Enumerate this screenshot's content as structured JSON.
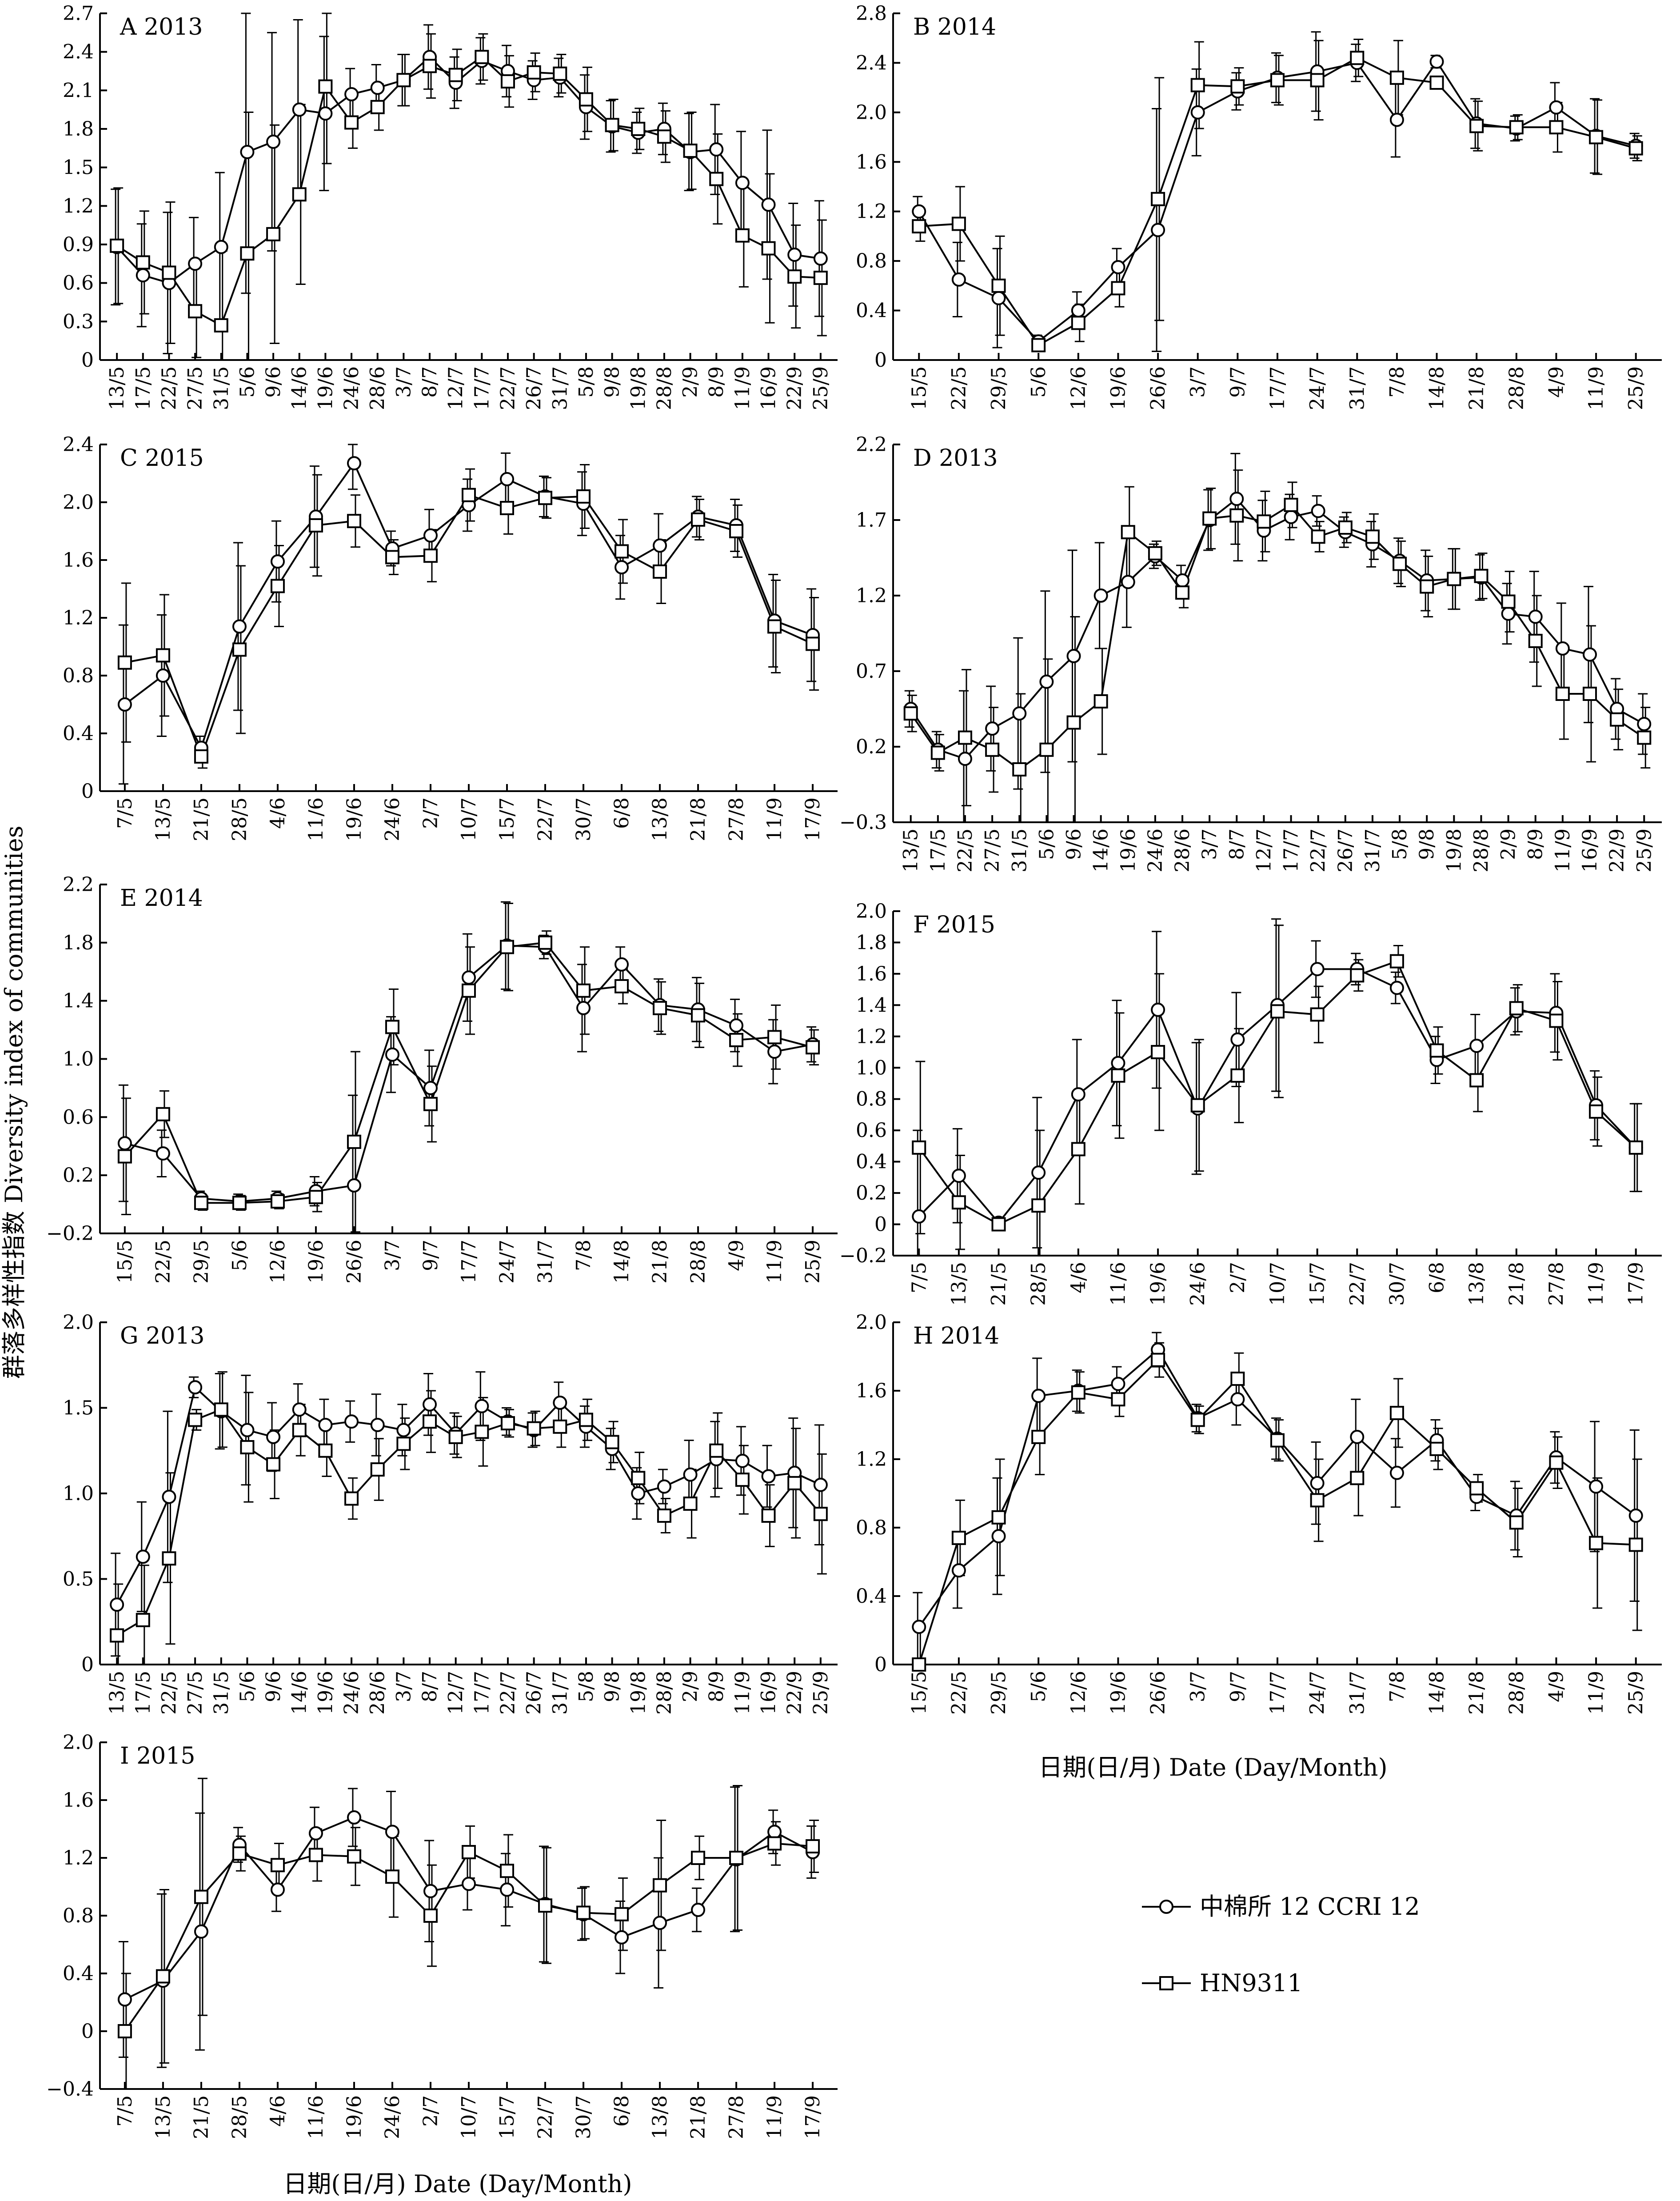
{
  "figure": {
    "ylabel": "群落多样性指数 Diversity index of communities",
    "xlabel_right": "日期(日/月) Date (Day/Month)",
    "xlabel_bottom": "日期(日/月) Date (Day/Month)",
    "legend": {
      "series1": "中棉所 12  CCRI 12",
      "series2": "HN9311"
    }
  },
  "chart_data": [
    {
      "type": "line",
      "title": "A 2013",
      "categories": [
        "13/5",
        "17/5",
        "22/5",
        "27/5",
        "31/5",
        "5/6",
        "9/6",
        "14/6",
        "19/6",
        "24/6",
        "28/6",
        "3/7",
        "8/7",
        "12/7",
        "17/7",
        "22/7",
        "26/7",
        "31/7",
        "5/8",
        "9/8",
        "19/8",
        "28/8",
        "2/9",
        "8/9",
        "11/9",
        "16/9",
        "22/9",
        "25/9"
      ],
      "ylim": [
        0,
        2.7
      ],
      "yticks": [
        "0",
        "0.3",
        "0.6",
        "0.9",
        "1.2",
        "1.5",
        "1.8",
        "2.1",
        "2.4",
        "2.7"
      ],
      "series": [
        {
          "name": "CCRI 12",
          "marker": "circle",
          "values": [
            0.88,
            0.66,
            0.6,
            0.75,
            0.88,
            1.62,
            1.7,
            1.95,
            1.92,
            2.07,
            2.12,
            2.18,
            2.36,
            2.16,
            2.33,
            2.25,
            2.18,
            2.2,
            1.97,
            1.82,
            1.77,
            1.8,
            1.62,
            1.64,
            1.38,
            1.21,
            0.82,
            0.79
          ]
        },
        {
          "name": "HN9311",
          "marker": "square",
          "values": [
            0.89,
            0.76,
            0.68,
            0.38,
            0.27,
            0.83,
            0.98,
            1.29,
            2.13,
            1.85,
            1.97,
            2.18,
            2.29,
            2.22,
            2.36,
            2.17,
            2.24,
            2.23,
            2.03,
            1.83,
            1.8,
            1.74,
            1.63,
            1.41,
            0.97,
            0.87,
            0.65,
            0.64
          ]
        }
      ],
      "errors": [
        0.45,
        0.4,
        0.55,
        0.36,
        0.58,
        1.1,
        0.85,
        0.7,
        0.6,
        0.2,
        0.18,
        0.2,
        0.25,
        0.2,
        0.18,
        0.2,
        0.15,
        0.15,
        0.25,
        0.2,
        0.16,
        0.2,
        0.3,
        0.35,
        0.4,
        0.58,
        0.4,
        0.45
      ]
    },
    {
      "type": "line",
      "title": "B 2014",
      "categories": [
        "15/5",
        "22/5",
        "29/5",
        "5/6",
        "12/6",
        "19/6",
        "26/6",
        "3/7",
        "9/7",
        "17/7",
        "24/7",
        "31/7",
        "7/8",
        "14/8",
        "21/8",
        "28/8",
        "4/9",
        "11/9",
        "25/9"
      ],
      "ylim": [
        0,
        2.8
      ],
      "yticks": [
        "0",
        "0.4",
        "0.8",
        "1.2",
        "1.6",
        "2.0",
        "2.4",
        "2.8"
      ],
      "series": [
        {
          "name": "CCRI 12",
          "marker": "circle",
          "values": [
            1.2,
            0.65,
            0.5,
            0.15,
            0.4,
            0.75,
            1.05,
            2.0,
            2.17,
            2.28,
            2.33,
            2.4,
            1.94,
            2.41,
            1.91,
            1.87,
            2.04,
            1.81,
            1.73
          ]
        },
        {
          "name": "HN9311",
          "marker": "square",
          "values": [
            1.08,
            1.1,
            0.6,
            0.12,
            0.3,
            0.58,
            1.3,
            2.22,
            2.21,
            2.26,
            2.26,
            2.44,
            2.28,
            2.24,
            1.89,
            1.88,
            1.88,
            1.8,
            1.71
          ]
        }
      ],
      "errors": [
        0.12,
        0.3,
        0.4,
        0.05,
        0.15,
        0.15,
        0.98,
        0.35,
        0.15,
        0.2,
        0.32,
        0.15,
        0.3,
        0.05,
        0.2,
        0.1,
        0.2,
        0.3,
        0.1
      ]
    },
    {
      "type": "line",
      "title": "C 2015",
      "categories": [
        "7/5",
        "13/5",
        "21/5",
        "28/5",
        "4/6",
        "11/6",
        "19/6",
        "24/6",
        "2/7",
        "10/7",
        "15/7",
        "22/7",
        "30/7",
        "6/8",
        "13/8",
        "21/8",
        "27/8",
        "11/9",
        "17/9"
      ],
      "ylim": [
        0,
        2.4
      ],
      "yticks": [
        "0",
        "0.4",
        "0.8",
        "1.2",
        "1.6",
        "2.0",
        "2.4"
      ],
      "series": [
        {
          "name": "CCRI 12",
          "marker": "circle",
          "values": [
            0.6,
            0.8,
            0.3,
            1.14,
            1.59,
            1.9,
            2.27,
            1.68,
            1.77,
            1.98,
            2.16,
            2.04,
            1.99,
            1.55,
            1.7,
            1.9,
            1.84,
            1.18,
            1.08
          ]
        },
        {
          "name": "HN9311",
          "marker": "square",
          "values": [
            0.89,
            0.94,
            0.24,
            0.98,
            1.42,
            1.84,
            1.87,
            1.62,
            1.63,
            2.05,
            1.96,
            2.03,
            2.04,
            1.66,
            1.52,
            1.88,
            1.8,
            1.14,
            1.02
          ]
        }
      ],
      "errors": [
        0.55,
        0.42,
        0.08,
        0.58,
        0.28,
        0.35,
        0.18,
        0.12,
        0.18,
        0.18,
        0.18,
        0.14,
        0.22,
        0.22,
        0.22,
        0.14,
        0.18,
        0.32,
        0.32
      ]
    },
    {
      "type": "line",
      "title": "D 2013",
      "categories": [
        "13/5",
        "17/5",
        "22/5",
        "27/5",
        "31/5",
        "5/6",
        "9/6",
        "14/6",
        "19/6",
        "24/6",
        "28/6",
        "3/7",
        "8/7",
        "12/7",
        "17/7",
        "22/7",
        "26/7",
        "31/7",
        "5/8",
        "9/8",
        "19/8",
        "28/8",
        "2/9",
        "8/9",
        "11/9",
        "16/9",
        "22/9",
        "25/9"
      ],
      "ylim": [
        -0.3,
        2.2
      ],
      "yticks": [
        "−0.3",
        "0.2",
        "0.7",
        "1.2",
        "1.7",
        "2.2"
      ],
      "series": [
        {
          "name": "CCRI 12",
          "marker": "circle",
          "values": [
            0.45,
            0.18,
            0.12,
            0.32,
            0.42,
            0.63,
            0.8,
            1.2,
            1.29,
            1.46,
            1.3,
            1.7,
            1.84,
            1.63,
            1.72,
            1.76,
            1.62,
            1.54,
            1.43,
            1.3,
            1.31,
            1.32,
            1.08,
            1.06,
            0.85,
            0.81,
            0.45,
            0.35
          ]
        },
        {
          "name": "HN9311",
          "marker": "square",
          "values": [
            0.42,
            0.16,
            0.26,
            0.18,
            0.05,
            0.18,
            0.36,
            0.5,
            1.62,
            1.48,
            1.22,
            1.71,
            1.73,
            1.69,
            1.8,
            1.59,
            1.65,
            1.59,
            1.41,
            1.26,
            1.31,
            1.33,
            1.16,
            0.9,
            0.55,
            0.55,
            0.38,
            0.26
          ]
        }
      ],
      "errors": [
        0.12,
        0.12,
        0.45,
        0.28,
        0.5,
        0.6,
        0.7,
        0.35,
        0.3,
        0.08,
        0.1,
        0.2,
        0.3,
        0.2,
        0.15,
        0.1,
        0.1,
        0.15,
        0.15,
        0.2,
        0.2,
        0.15,
        0.2,
        0.3,
        0.3,
        0.45,
        0.2,
        0.2
      ]
    },
    {
      "type": "line",
      "title": "E 2014",
      "categories": [
        "15/5",
        "22/5",
        "29/5",
        "5/6",
        "12/6",
        "19/6",
        "26/6",
        "3/7",
        "9/7",
        "17/7",
        "24/7",
        "31/7",
        "7/8",
        "14/8",
        "21/8",
        "28/8",
        "4/9",
        "11/9",
        "25/9"
      ],
      "ylim": [
        -0.2,
        2.2
      ],
      "yticks": [
        "−0.2",
        "0.2",
        "0.6",
        "1.0",
        "1.4",
        "1.8",
        "2.2"
      ],
      "series": [
        {
          "name": "CCRI 12",
          "marker": "circle",
          "values": [
            0.42,
            0.35,
            0.04,
            0.02,
            0.04,
            0.09,
            0.13,
            1.03,
            0.8,
            1.56,
            1.78,
            1.77,
            1.35,
            1.65,
            1.37,
            1.34,
            1.23,
            1.05,
            1.1
          ]
        },
        {
          "name": "HN9311",
          "marker": "square",
          "values": [
            0.33,
            0.62,
            0.01,
            0.01,
            0.02,
            0.05,
            0.43,
            1.22,
            0.69,
            1.47,
            1.77,
            1.8,
            1.47,
            1.5,
            1.35,
            1.3,
            1.13,
            1.15,
            1.08
          ]
        }
      ],
      "errors": [
        0.4,
        0.16,
        0.05,
        0.05,
        0.05,
        0.1,
        0.62,
        0.26,
        0.26,
        0.3,
        0.3,
        0.08,
        0.3,
        0.12,
        0.18,
        0.22,
        0.18,
        0.22,
        0.12
      ]
    },
    {
      "type": "line",
      "title": "F 2015",
      "categories": [
        "7/5",
        "13/5",
        "21/5",
        "28/5",
        "4/6",
        "11/6",
        "19/6",
        "24/6",
        "2/7",
        "10/7",
        "15/7",
        "22/7",
        "30/7",
        "6/8",
        "13/8",
        "21/8",
        "27/8",
        "11/9",
        "17/9"
      ],
      "ylim": [
        -0.2,
        2.0
      ],
      "yticks": [
        "−0.2",
        "0",
        "0.2",
        "0.4",
        "0.6",
        "0.8",
        "1.0",
        "1.2",
        "1.4",
        "1.6",
        "1.8",
        "2.0"
      ],
      "series": [
        {
          "name": "CCRI 12",
          "marker": "circle",
          "values": [
            0.05,
            0.31,
            0.01,
            0.33,
            0.83,
            1.03,
            1.37,
            0.74,
            1.18,
            1.4,
            1.63,
            1.63,
            1.51,
            1.05,
            1.14,
            1.36,
            1.35,
            0.76,
            0.49
          ]
        },
        {
          "name": "HN9311",
          "marker": "square",
          "values": [
            0.49,
            0.14,
            0.0,
            0.12,
            0.48,
            0.95,
            1.1,
            0.76,
            0.95,
            1.36,
            1.34,
            1.59,
            1.68,
            1.11,
            0.92,
            1.38,
            1.3,
            0.72,
            0.49
          ]
        }
      ],
      "errors": [
        0.55,
        0.3,
        0.02,
        0.48,
        0.35,
        0.4,
        0.5,
        0.42,
        0.3,
        0.55,
        0.18,
        0.1,
        0.1,
        0.15,
        0.2,
        0.15,
        0.25,
        0.22,
        0.28
      ]
    },
    {
      "type": "line",
      "title": "G 2013",
      "categories": [
        "13/5",
        "17/5",
        "22/5",
        "27/5",
        "31/5",
        "5/6",
        "9/6",
        "14/6",
        "19/6",
        "24/6",
        "28/6",
        "3/7",
        "8/7",
        "12/7",
        "17/7",
        "22/7",
        "26/7",
        "31/7",
        "5/8",
        "9/8",
        "19/8",
        "28/8",
        "2/9",
        "8/9",
        "11/9",
        "16/9",
        "22/9",
        "25/9"
      ],
      "ylim": [
        0,
        2.0
      ],
      "yticks": [
        "0",
        "0.5",
        "1.0",
        "1.5",
        "2.0"
      ],
      "series": [
        {
          "name": "CCRI 12",
          "marker": "circle",
          "values": [
            0.35,
            0.63,
            0.98,
            1.62,
            1.48,
            1.37,
            1.33,
            1.49,
            1.4,
            1.42,
            1.4,
            1.37,
            1.52,
            1.35,
            1.51,
            1.42,
            1.37,
            1.53,
            1.39,
            1.26,
            1.0,
            1.04,
            1.11,
            1.2,
            1.19,
            1.1,
            1.12,
            1.05
          ]
        },
        {
          "name": "HN9311",
          "marker": "square",
          "values": [
            0.17,
            0.26,
            0.62,
            1.43,
            1.49,
            1.27,
            1.17,
            1.37,
            1.25,
            0.97,
            1.14,
            1.29,
            1.42,
            1.33,
            1.36,
            1.41,
            1.38,
            1.39,
            1.43,
            1.3,
            1.09,
            0.87,
            0.94,
            1.25,
            1.08,
            0.87,
            1.06,
            0.88
          ]
        }
      ],
      "errors": [
        0.3,
        0.32,
        0.5,
        0.06,
        0.22,
        0.32,
        0.2,
        0.15,
        0.15,
        0.12,
        0.18,
        0.15,
        0.18,
        0.12,
        0.2,
        0.08,
        0.1,
        0.12,
        0.12,
        0.12,
        0.15,
        0.1,
        0.2,
        0.22,
        0.2,
        0.18,
        0.32,
        0.35
      ]
    },
    {
      "type": "line",
      "title": "H 2014",
      "categories": [
        "15/5",
        "22/5",
        "29/5",
        "5/6",
        "12/6",
        "19/6",
        "26/6",
        "3/7",
        "9/7",
        "17/7",
        "24/7",
        "31/7",
        "7/8",
        "14/8",
        "21/8",
        "28/8",
        "4/9",
        "11/9",
        "25/9"
      ],
      "ylim": [
        0,
        2.0
      ],
      "yticks": [
        "0",
        "0.4",
        "0.8",
        "1.2",
        "1.6",
        "2.0"
      ],
      "series": [
        {
          "name": "CCRI 12",
          "marker": "circle",
          "values": [
            0.22,
            0.55,
            0.75,
            1.57,
            1.6,
            1.64,
            1.84,
            1.44,
            1.55,
            1.32,
            1.06,
            1.33,
            1.12,
            1.31,
            0.98,
            0.87,
            1.21,
            1.04,
            0.87
          ]
        },
        {
          "name": "HN9311",
          "marker": "square",
          "values": [
            0.0,
            0.74,
            0.86,
            1.33,
            1.59,
            1.55,
            1.78,
            1.43,
            1.67,
            1.31,
            0.96,
            1.09,
            1.47,
            1.26,
            1.03,
            0.83,
            1.18,
            0.71,
            0.7
          ]
        }
      ],
      "errors": [
        0.2,
        0.22,
        0.34,
        0.22,
        0.12,
        0.1,
        0.1,
        0.08,
        0.15,
        0.12,
        0.24,
        0.22,
        0.2,
        0.12,
        0.08,
        0.2,
        0.15,
        0.38,
        0.5
      ]
    },
    {
      "type": "line",
      "title": "I 2015",
      "categories": [
        "7/5",
        "13/5",
        "21/5",
        "28/5",
        "4/6",
        "11/6",
        "19/6",
        "24/6",
        "2/7",
        "10/7",
        "15/7",
        "22/7",
        "30/7",
        "6/8",
        "13/8",
        "21/8",
        "27/8",
        "11/9",
        "17/9"
      ],
      "ylim": [
        -0.4,
        2.0
      ],
      "yticks": [
        "−0.4",
        "0",
        "0.4",
        "0.8",
        "1.2",
        "1.6",
        "2.0"
      ],
      "series": [
        {
          "name": "CCRI 12",
          "marker": "circle",
          "values": [
            0.22,
            0.35,
            0.69,
            1.29,
            0.98,
            1.37,
            1.48,
            1.38,
            0.97,
            1.02,
            0.98,
            0.88,
            0.81,
            0.65,
            0.75,
            0.84,
            1.19,
            1.38,
            1.24
          ]
        },
        {
          "name": "HN9311",
          "marker": "square",
          "values": [
            0.0,
            0.38,
            0.93,
            1.23,
            1.15,
            1.22,
            1.21,
            1.07,
            0.8,
            1.24,
            1.11,
            0.87,
            0.82,
            0.81,
            1.01,
            1.2,
            1.2,
            1.3,
            1.28
          ]
        }
      ],
      "errors": [
        0.4,
        0.6,
        0.82,
        0.12,
        0.15,
        0.18,
        0.2,
        0.28,
        0.35,
        0.18,
        0.25,
        0.4,
        0.18,
        0.25,
        0.45,
        0.15,
        0.5,
        0.15,
        0.18
      ]
    }
  ]
}
